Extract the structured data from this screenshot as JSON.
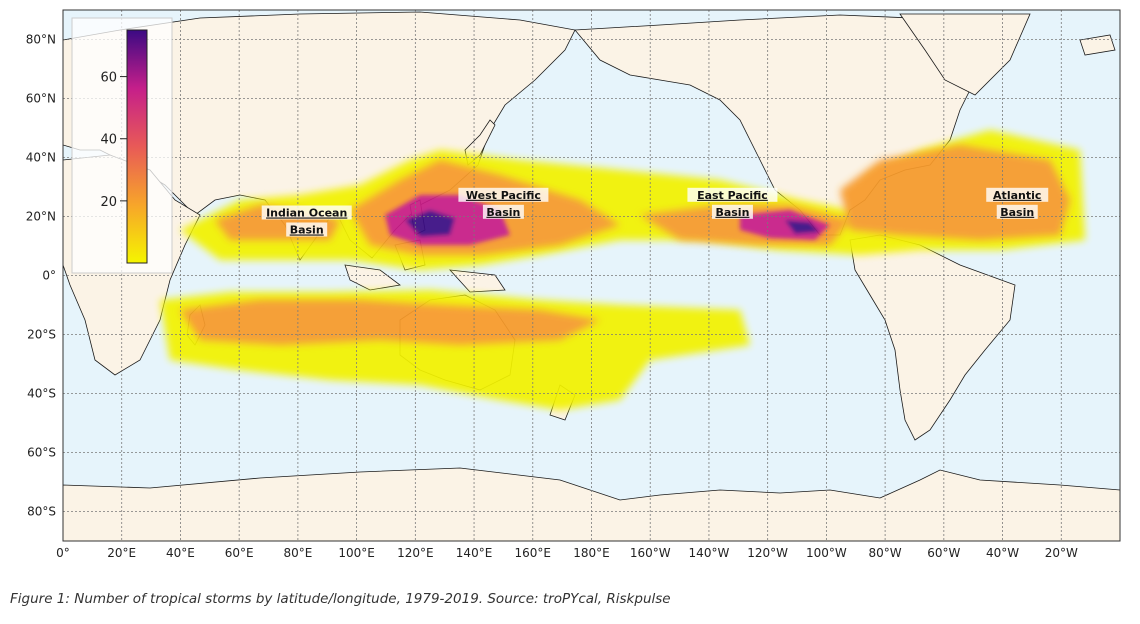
{
  "map": {
    "colors": {
      "ocean": "#e6f4fb",
      "land": "#fbf3e6",
      "border": "#1a1a1a",
      "grid": "#7a7a7a",
      "density_low": "#f2f200",
      "density_mid": "#f79a2a",
      "density_high": "#c81c86",
      "density_max": "#3b0a83"
    },
    "lat_ticks": [
      "80°N",
      "60°N",
      "40°N",
      "20°N",
      "0°",
      "20°S",
      "40°S",
      "60°S",
      "80°S"
    ],
    "lon_ticks": [
      "0°",
      "20°E",
      "40°E",
      "60°E",
      "80°E",
      "100°E",
      "120°E",
      "140°E",
      "160°E",
      "180°E",
      "160°W",
      "140°W",
      "120°W",
      "100°W",
      "80°W",
      "60°W",
      "40°W",
      "20°W"
    ],
    "basins": [
      {
        "line1": "Indian Ocean",
        "line2": "Basin",
        "lon": 83,
        "lat": 20
      },
      {
        "line1": "West Pacific",
        "line2": "Basin",
        "lon": 150,
        "lat": 26
      },
      {
        "line1": "East Pacific",
        "line2": "Basin",
        "lon": 228,
        "lat": 26
      },
      {
        "line1": "Atlantic",
        "line2": "Basin",
        "lon": 325,
        "lat": 26
      }
    ],
    "colorbar": {
      "ticks": [
        "60",
        "40",
        "20"
      ]
    }
  },
  "caption": "Figure 1: Number of tropical storms by latitude/longitude, 1979-2019. Source: troPYcal, Riskpulse"
}
